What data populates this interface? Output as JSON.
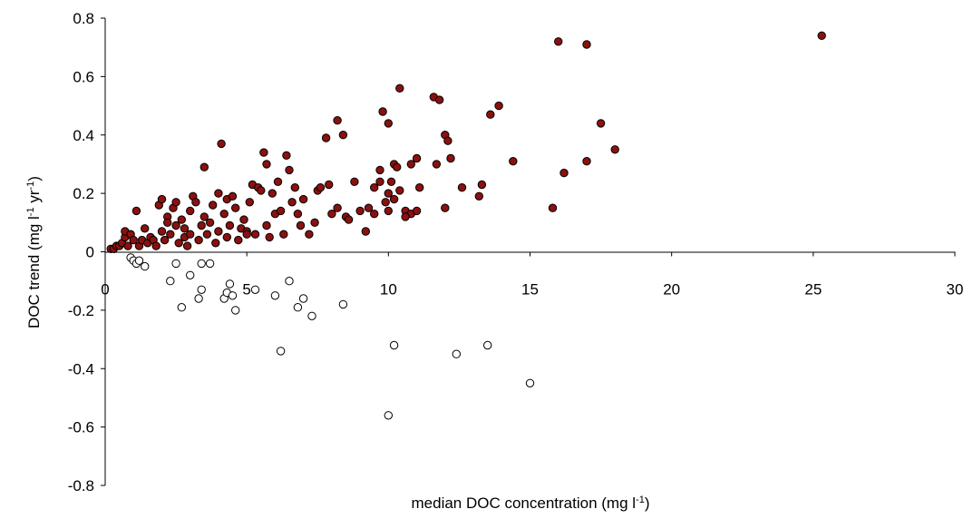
{
  "chart_data": {
    "type": "scatter",
    "title": "",
    "xlabel": "median DOC concentration (mg l-1)",
    "ylabel": "DOC trend (mg l-1 yr-1)",
    "xlabel_parts": [
      {
        "text": "median DOC concentration (mg l",
        "sup": false
      },
      {
        "text": "-1",
        "sup": true
      },
      {
        "text": ")",
        "sup": false
      }
    ],
    "ylabel_parts": [
      {
        "text": "DOC trend (mg l",
        "sup": false
      },
      {
        "text": "-1",
        "sup": true
      },
      {
        "text": " yr",
        "sup": false
      },
      {
        "text": "-1",
        "sup": true
      },
      {
        "text": ")",
        "sup": false
      }
    ],
    "xlim": [
      0,
      30
    ],
    "ylim": [
      -0.8,
      0.8
    ],
    "x_ticks": [
      "0",
      "5",
      "10",
      "15",
      "20",
      "25",
      "30"
    ],
    "y_ticks": [
      "-0.8",
      "-0.6",
      "-0.4",
      "-0.2",
      "0",
      "0.2",
      "0.4",
      "0.6",
      "0.8"
    ],
    "grid": false,
    "legend": "none",
    "series": [
      {
        "marker": "filled-circle",
        "color": "#8b1010",
        "points": [
          [
            0.2,
            0.01
          ],
          [
            0.3,
            0.01
          ],
          [
            0.4,
            0.02
          ],
          [
            0.5,
            0.02
          ],
          [
            0.6,
            0.03
          ],
          [
            0.7,
            0.05
          ],
          [
            0.7,
            0.07
          ],
          [
            0.8,
            0.02
          ],
          [
            0.9,
            0.06
          ],
          [
            1.0,
            0.04
          ],
          [
            1.1,
            0.14
          ],
          [
            1.2,
            0.02
          ],
          [
            1.3,
            0.04
          ],
          [
            1.4,
            0.08
          ],
          [
            1.5,
            0.03
          ],
          [
            1.6,
            0.05
          ],
          [
            1.7,
            0.04
          ],
          [
            1.8,
            0.02
          ],
          [
            1.9,
            0.16
          ],
          [
            2.0,
            0.18
          ],
          [
            2.0,
            0.07
          ],
          [
            2.1,
            0.04
          ],
          [
            2.2,
            0.12
          ],
          [
            2.2,
            0.1
          ],
          [
            2.3,
            0.06
          ],
          [
            2.4,
            0.15
          ],
          [
            2.5,
            0.17
          ],
          [
            2.5,
            0.09
          ],
          [
            2.6,
            0.03
          ],
          [
            2.7,
            0.11
          ],
          [
            2.8,
            0.08
          ],
          [
            2.8,
            0.05
          ],
          [
            2.9,
            0.02
          ],
          [
            3.0,
            0.14
          ],
          [
            3.0,
            0.06
          ],
          [
            3.1,
            0.19
          ],
          [
            3.2,
            0.17
          ],
          [
            3.3,
            0.04
          ],
          [
            3.4,
            0.09
          ],
          [
            3.5,
            0.12
          ],
          [
            3.5,
            0.29
          ],
          [
            3.6,
            0.06
          ],
          [
            3.7,
            0.1
          ],
          [
            3.8,
            0.16
          ],
          [
            3.9,
            0.03
          ],
          [
            4.0,
            0.2
          ],
          [
            4.0,
            0.07
          ],
          [
            4.1,
            0.37
          ],
          [
            4.2,
            0.13
          ],
          [
            4.3,
            0.18
          ],
          [
            4.3,
            0.05
          ],
          [
            4.4,
            0.09
          ],
          [
            4.5,
            0.19
          ],
          [
            4.6,
            0.15
          ],
          [
            4.7,
            0.04
          ],
          [
            4.8,
            0.08
          ],
          [
            4.9,
            0.11
          ],
          [
            5.0,
            0.07
          ],
          [
            5.0,
            0.06
          ],
          [
            5.1,
            0.17
          ],
          [
            5.2,
            0.23
          ],
          [
            5.3,
            0.06
          ],
          [
            5.4,
            0.22
          ],
          [
            5.5,
            0.21
          ],
          [
            5.6,
            0.34
          ],
          [
            5.7,
            0.3
          ],
          [
            5.7,
            0.09
          ],
          [
            5.8,
            0.05
          ],
          [
            5.9,
            0.2
          ],
          [
            6.0,
            0.13
          ],
          [
            6.1,
            0.24
          ],
          [
            6.2,
            0.14
          ],
          [
            6.3,
            0.06
          ],
          [
            6.4,
            0.33
          ],
          [
            6.5,
            0.28
          ],
          [
            6.6,
            0.17
          ],
          [
            6.7,
            0.22
          ],
          [
            6.8,
            0.13
          ],
          [
            6.9,
            0.09
          ],
          [
            7.0,
            0.18
          ],
          [
            7.2,
            0.06
          ],
          [
            7.4,
            0.1
          ],
          [
            7.5,
            0.21
          ],
          [
            7.6,
            0.22
          ],
          [
            7.8,
            0.39
          ],
          [
            7.9,
            0.23
          ],
          [
            8.0,
            0.13
          ],
          [
            8.2,
            0.45
          ],
          [
            8.2,
            0.15
          ],
          [
            8.4,
            0.4
          ],
          [
            8.5,
            0.12
          ],
          [
            8.6,
            0.11
          ],
          [
            8.8,
            0.24
          ],
          [
            9.0,
            0.14
          ],
          [
            9.2,
            0.07
          ],
          [
            9.3,
            0.15
          ],
          [
            9.5,
            0.13
          ],
          [
            9.7,
            0.24
          ],
          [
            9.9,
            0.17
          ],
          [
            10.0,
            0.14
          ],
          [
            10.2,
            0.18
          ],
          [
            10.4,
            0.21
          ],
          [
            10.6,
            0.14
          ],
          [
            10.8,
            0.13
          ],
          [
            11.0,
            0.14
          ],
          [
            9.5,
            0.22
          ],
          [
            9.7,
            0.28
          ],
          [
            9.8,
            0.48
          ],
          [
            10.0,
            0.44
          ],
          [
            10.1,
            0.24
          ],
          [
            10.0,
            0.2
          ],
          [
            10.2,
            0.3
          ],
          [
            10.3,
            0.29
          ],
          [
            10.4,
            0.56
          ],
          [
            10.6,
            0.12
          ],
          [
            10.8,
            0.3
          ],
          [
            11.0,
            0.32
          ],
          [
            11.1,
            0.22
          ],
          [
            11.6,
            0.53
          ],
          [
            11.8,
            0.52
          ],
          [
            11.7,
            0.3
          ],
          [
            12.0,
            0.4
          ],
          [
            12.1,
            0.38
          ],
          [
            12.2,
            0.32
          ],
          [
            12.0,
            0.15
          ],
          [
            12.6,
            0.22
          ],
          [
            13.2,
            0.19
          ],
          [
            13.3,
            0.23
          ],
          [
            13.6,
            0.47
          ],
          [
            13.9,
            0.5
          ],
          [
            14.4,
            0.31
          ],
          [
            15.8,
            0.15
          ],
          [
            16.0,
            0.72
          ],
          [
            16.2,
            0.27
          ],
          [
            17.0,
            0.71
          ],
          [
            17.0,
            0.31
          ],
          [
            17.5,
            0.44
          ],
          [
            18.0,
            0.35
          ],
          [
            25.3,
            0.74
          ]
        ]
      },
      {
        "marker": "open-circle",
        "color": "#000000",
        "points": [
          [
            0.9,
            -0.02
          ],
          [
            1.0,
            -0.03
          ],
          [
            1.1,
            -0.04
          ],
          [
            1.2,
            -0.03
          ],
          [
            1.4,
            -0.05
          ],
          [
            2.3,
            -0.1
          ],
          [
            2.5,
            -0.04
          ],
          [
            2.7,
            -0.19
          ],
          [
            3.0,
            -0.08
          ],
          [
            3.3,
            -0.16
          ],
          [
            3.4,
            -0.13
          ],
          [
            3.4,
            -0.04
          ],
          [
            3.7,
            -0.04
          ],
          [
            4.2,
            -0.16
          ],
          [
            4.3,
            -0.14
          ],
          [
            4.4,
            -0.11
          ],
          [
            4.5,
            -0.15
          ],
          [
            4.6,
            -0.2
          ],
          [
            5.3,
            -0.13
          ],
          [
            6.0,
            -0.15
          ],
          [
            6.2,
            -0.34
          ],
          [
            6.5,
            -0.1
          ],
          [
            6.8,
            -0.19
          ],
          [
            7.0,
            -0.16
          ],
          [
            7.3,
            -0.22
          ],
          [
            8.4,
            -0.18
          ],
          [
            10.0,
            -0.56
          ],
          [
            10.2,
            -0.32
          ],
          [
            12.4,
            -0.35
          ],
          [
            13.5,
            -0.32
          ],
          [
            15.0,
            -0.45
          ]
        ]
      }
    ]
  }
}
